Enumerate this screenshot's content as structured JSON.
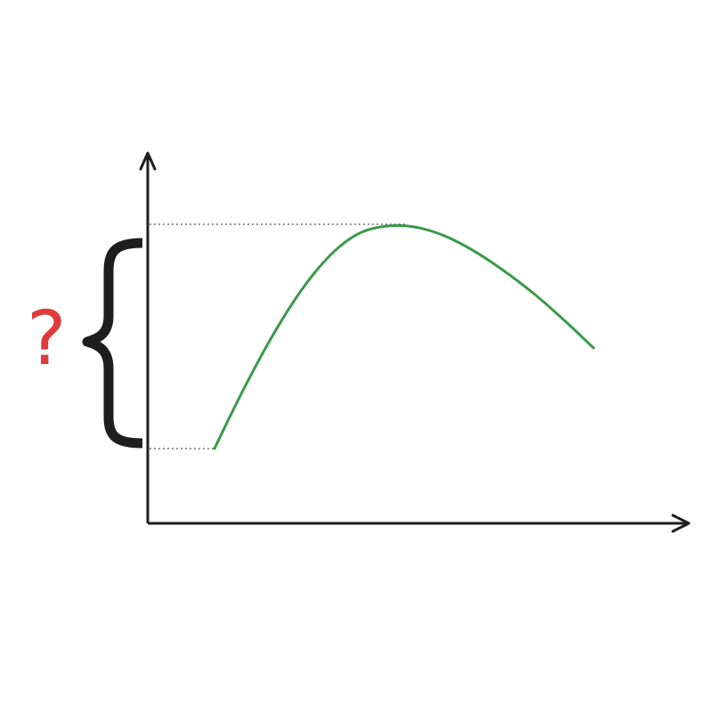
{
  "diagram": {
    "question_label": "?",
    "colors": {
      "axis": "#1e1e1e",
      "curve": "#3a9a4a",
      "guide_lines": "#555555",
      "brace": "#1e1e1e",
      "question_mark": "#e03a3a"
    },
    "icons": {
      "x_axis_arrow": "arrow-right-icon",
      "y_axis_arrow": "arrow-up-icon",
      "brace": "curly-brace-icon"
    }
  }
}
